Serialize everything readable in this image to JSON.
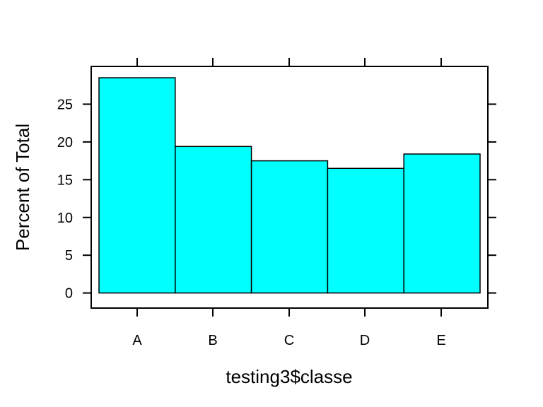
{
  "chart_data": {
    "type": "bar",
    "xlabel": "testing3$classe",
    "ylabel": "Percent of Total",
    "categories": [
      "A",
      "B",
      "C",
      "D",
      "E"
    ],
    "values": [
      28.5,
      19.4,
      17.5,
      16.5,
      18.4
    ],
    "ylim": [
      -2,
      30
    ],
    "yticks": [
      0,
      5,
      10,
      15,
      20,
      25
    ],
    "ytick_labels": [
      "0",
      "5",
      "10",
      "15",
      "20",
      "25"
    ],
    "grid": false,
    "legend": "none",
    "colors": {
      "bar_fill": "#00FFFF",
      "bar_stroke": "#000000",
      "frame": "#000000"
    }
  }
}
